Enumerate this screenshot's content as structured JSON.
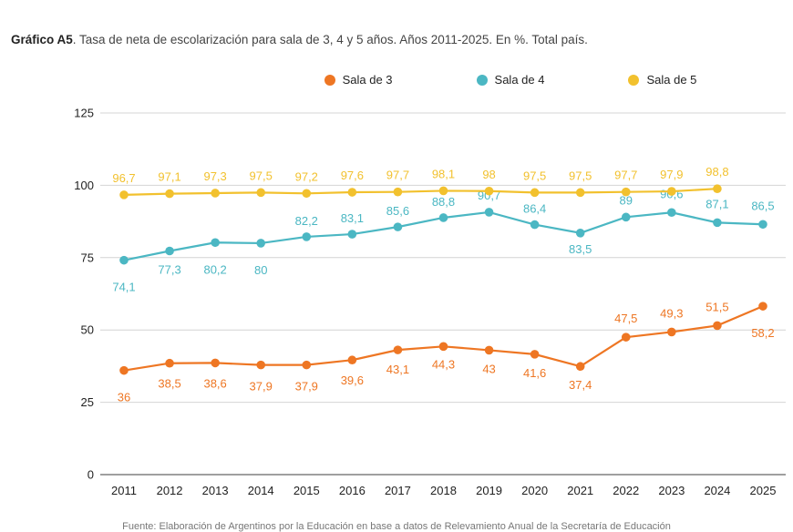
{
  "title": {
    "bold": "Gráfico A5",
    "rest": ". Tasa de neta de escolarización para sala de 3, 4 y 5 años. Años 2011-2025. En %. Total país."
  },
  "source_note": "Fuente: Elaboración de Argentinos por la Educación en base a datos de Relevamiento Anual de la Secretaría de Educación",
  "chart_data": {
    "type": "line",
    "x": [
      "2011",
      "2012",
      "2013",
      "2014",
      "2015",
      "2016",
      "2017",
      "2018",
      "2019",
      "2020",
      "2021",
      "2022",
      "2023",
      "2024",
      "2025"
    ],
    "ylim": [
      0,
      125
    ],
    "yticks": [
      0,
      25,
      50,
      75,
      100,
      125
    ],
    "grid": true,
    "legend_position": "top-center",
    "series": [
      {
        "name": "Sala de 3",
        "color": "#ee7623",
        "values": [
          36,
          38.5,
          38.6,
          37.9,
          37.9,
          39.6,
          43.1,
          44.3,
          43,
          41.6,
          37.4,
          47.5,
          49.3,
          51.5,
          58.2
        ],
        "labels": [
          "36",
          "38,5",
          "38,6",
          "37,9",
          "37,9",
          "39,6",
          "43,1",
          "44,3",
          "43",
          "41,6",
          "37,4",
          "47,5",
          "49,3",
          "51,5",
          "58,2"
        ]
      },
      {
        "name": "Sala de 4",
        "color": "#4bb7c3",
        "values": [
          74.1,
          77.3,
          80.2,
          80,
          82.2,
          83.1,
          85.6,
          88.8,
          90.7,
          86.4,
          83.5,
          89,
          90.6,
          87.1,
          86.5
        ],
        "labels": [
          "74,1",
          "77,3",
          "80,2",
          "80",
          "82,2",
          "83,1",
          "85,6",
          "88,8",
          "90,7",
          "86,4",
          "83,5",
          "89",
          "90,6",
          "87,1",
          "86,5"
        ]
      },
      {
        "name": "Sala de 5",
        "color": "#f2c12e",
        "values": [
          96.7,
          97.1,
          97.3,
          97.5,
          97.2,
          97.6,
          97.7,
          98.1,
          98,
          97.5,
          97.5,
          97.7,
          97.9,
          98.8,
          null
        ],
        "labels": [
          "96,7",
          "97,1",
          "97,3",
          "97,5",
          "97,2",
          "97,6",
          "97,7",
          "98,1",
          "98",
          "97,5",
          "97,5",
          "97,7",
          "97,9",
          "98,8",
          null
        ]
      }
    ]
  }
}
